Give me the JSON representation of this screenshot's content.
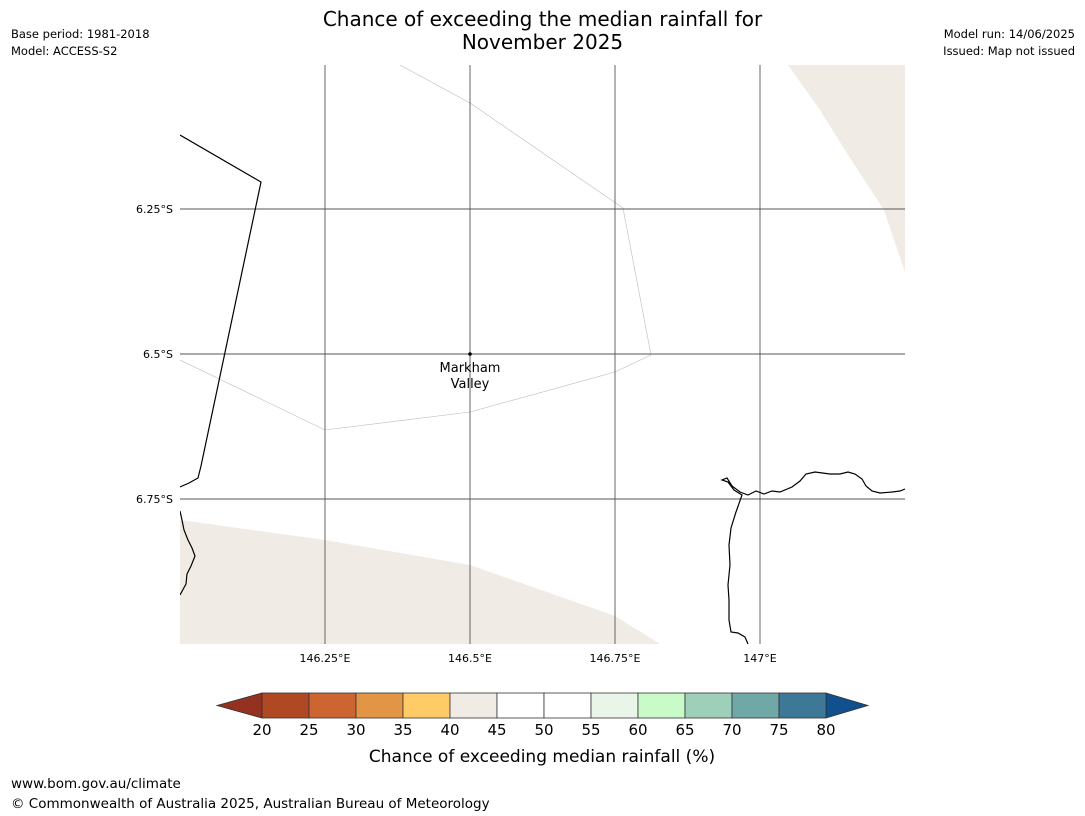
{
  "header": {
    "title_line1": "Chance of exceeding the median rainfall for",
    "title_line2": "November 2025",
    "left_line1": "Base period: 1981-2018",
    "left_line2": "Model: ACCESS-S2",
    "right_line1": "Model run: 14/06/2025",
    "right_line2": "Issued: Map not issued"
  },
  "map": {
    "lat_labels": [
      "6.25°S",
      "6.5°S",
      "6.75°S"
    ],
    "lon_labels": [
      "146.25°E",
      "146.5°E",
      "146.75°E",
      "147°E"
    ],
    "place_name_line1": "Markham",
    "place_name_line2": "Valley",
    "colors": {
      "land_shade": "#f0ebe4",
      "grid": "#555555",
      "boundary": "#000000",
      "region_outline": "#bbbbbb"
    }
  },
  "colorbar": {
    "title": "Chance of exceeding median rainfall (%)",
    "labels": [
      "20",
      "25",
      "30",
      "35",
      "40",
      "45",
      "50",
      "55",
      "60",
      "65",
      "70",
      "75",
      "80"
    ],
    "low_extend_color": "#953121",
    "high_extend_color": "#10508e",
    "colors": [
      "#b04824",
      "#cc6532",
      "#e19545",
      "#fecb66",
      "#f0ebe4",
      "#ffffff",
      "#ffffff",
      "#e9f5e8",
      "#c9fbc8",
      "#9ed0b9",
      "#70a8a7",
      "#3e7897"
    ]
  },
  "footer": {
    "url": "www.bom.gov.au/climate",
    "copyright": "© Commonwealth of Australia 2025, Australian Bureau of Meteorology"
  }
}
